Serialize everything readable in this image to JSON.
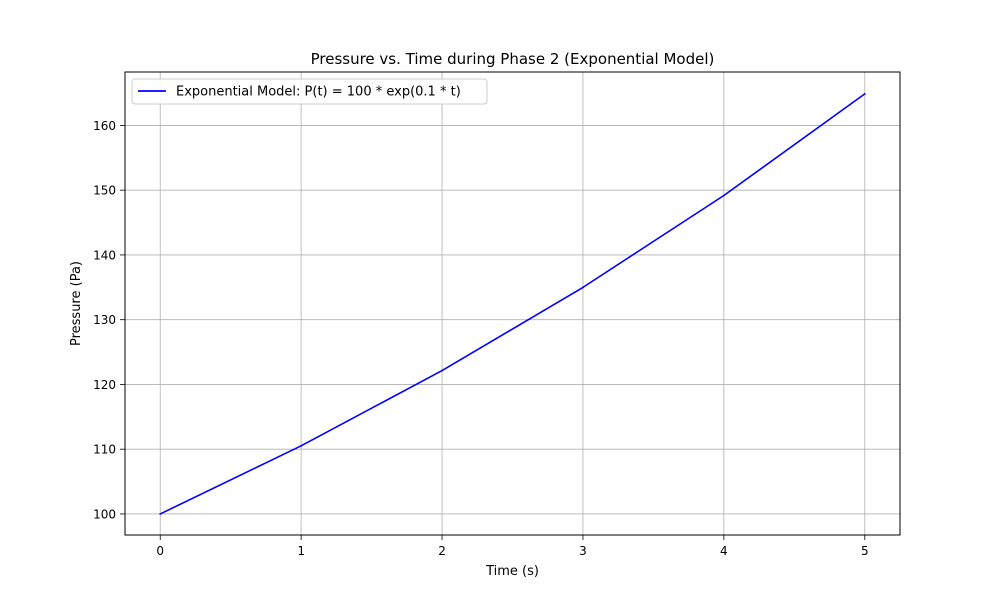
{
  "chart_data": {
    "type": "line",
    "title": "Pressure vs. Time during Phase 2 (Exponential Model)",
    "xlabel": "Time (s)",
    "ylabel": "Pressure (Pa)",
    "xlim": [
      -0.25,
      5.25
    ],
    "ylim": [
      96.75,
      168.25
    ],
    "xticks": [
      0,
      1,
      2,
      3,
      4,
      5
    ],
    "yticks": [
      100,
      110,
      120,
      130,
      140,
      150,
      160
    ],
    "grid": true,
    "legend_position": "top-left",
    "series": [
      {
        "name": "Exponential Model: P(t) = 100 * exp(0.1 * t)",
        "color": "#0000ff",
        "x": [
          0,
          1,
          2,
          3,
          4,
          5
        ],
        "y": [
          100.0,
          110.52,
          122.14,
          134.99,
          149.18,
          164.87
        ]
      }
    ]
  }
}
